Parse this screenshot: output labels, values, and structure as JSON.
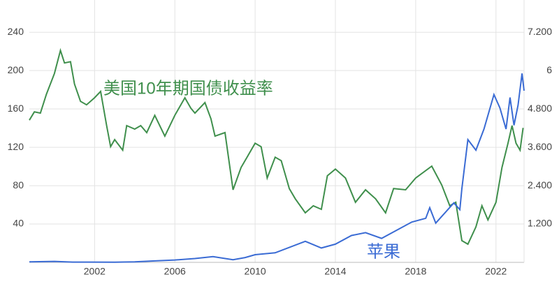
{
  "chart_data": {
    "type": "line",
    "xlim": [
      1998.75,
      2023.4
    ],
    "xticks": [
      2002,
      2006,
      2010,
      2014,
      2018,
      2022
    ],
    "ylim": [
      0,
      270
    ],
    "yticks": [
      40,
      80,
      120,
      160,
      200,
      240
    ],
    "y2lim": [
      0,
      8.1
    ],
    "y2ticks": [
      {
        "value": 1.2,
        "label": "1.200"
      },
      {
        "value": 2.4,
        "label": "2.400"
      },
      {
        "value": 3.6,
        "label": "3.600"
      },
      {
        "value": 4.8,
        "label": "4.800"
      },
      6,
      {
        "value": 7.2,
        "label": "7.200"
      }
    ],
    "grid": true,
    "series": [
      {
        "name": "美国10年期国债收益率",
        "color": "#3f8f4c",
        "axis": "y2",
        "x": [
          1998.75,
          1999.0,
          1999.3,
          1999.6,
          2000.0,
          2000.3,
          2000.5,
          2000.8,
          2001.0,
          2001.3,
          2001.6,
          2002.0,
          2002.3,
          2002.6,
          2002.8,
          2003.0,
          2003.4,
          2003.6,
          2004.0,
          2004.3,
          2004.6,
          2005.0,
          2005.5,
          2006.0,
          2006.5,
          2006.8,
          2007.0,
          2007.5,
          2007.8,
          2008.0,
          2008.5,
          2008.9,
          2009.3,
          2009.6,
          2010.0,
          2010.3,
          2010.6,
          2011.0,
          2011.3,
          2011.7,
          2012.0,
          2012.5,
          2012.9,
          2013.3,
          2013.6,
          2014.0,
          2014.5,
          2015.0,
          2015.5,
          2016.0,
          2016.5,
          2016.9,
          2017.5,
          2018.0,
          2018.8,
          2019.3,
          2019.7,
          2020.0,
          2020.3,
          2020.6,
          2021.0,
          2021.3,
          2021.6,
          2022.0,
          2022.3,
          2022.6,
          2022.8,
          2023.0,
          2023.2,
          2023.35
        ],
        "values": [
          4.45,
          4.71,
          4.67,
          5.26,
          5.91,
          6.63,
          6.24,
          6.28,
          5.58,
          5.04,
          4.93,
          5.15,
          5.35,
          4.28,
          3.62,
          3.84,
          3.51,
          4.28,
          4.17,
          4.28,
          4.06,
          4.6,
          3.95,
          4.6,
          5.15,
          4.82,
          4.67,
          5.0,
          4.49,
          3.95,
          4.06,
          2.27,
          2.97,
          3.29,
          3.73,
          3.62,
          2.64,
          3.29,
          3.18,
          2.31,
          1.99,
          1.55,
          1.77,
          1.66,
          2.71,
          2.92,
          2.64,
          1.88,
          2.27,
          1.99,
          1.55,
          2.31,
          2.27,
          2.64,
          3.01,
          2.42,
          1.77,
          1.88,
          0.68,
          0.57,
          1.11,
          1.77,
          1.33,
          1.88,
          2.97,
          3.73,
          4.28,
          3.73,
          3.51,
          4.21
        ]
      },
      {
        "name": "苹果",
        "color": "#3a6bd4",
        "x": [
          1998.75,
          1999.5,
          2000.0,
          2000.9,
          2003.0,
          2004.0,
          2005.0,
          2006.0,
          2007.0,
          2007.9,
          2008.9,
          2009.5,
          2010.0,
          2011.0,
          2012.5,
          2013.3,
          2014.0,
          2014.8,
          2015.5,
          2016.3,
          2017.0,
          2017.8,
          2018.5,
          2018.7,
          2019.0,
          2019.9,
          2020.2,
          2020.3,
          2020.6,
          2021.0,
          2021.4,
          2021.9,
          2022.2,
          2022.5,
          2022.7,
          2022.9,
          2023.1,
          2023.3,
          2023.4
        ],
        "values": [
          0.6,
          0.8,
          1.0,
          0.3,
          0.25,
          0.5,
          1.5,
          2.5,
          4,
          6,
          2.8,
          5,
          8,
          10,
          22,
          15,
          19,
          28,
          31,
          25,
          33,
          42,
          46,
          57,
          41,
          62,
          55,
          77,
          128,
          117,
          139,
          175,
          161,
          139,
          172,
          143,
          164,
          197,
          179
        ]
      }
    ]
  }
}
